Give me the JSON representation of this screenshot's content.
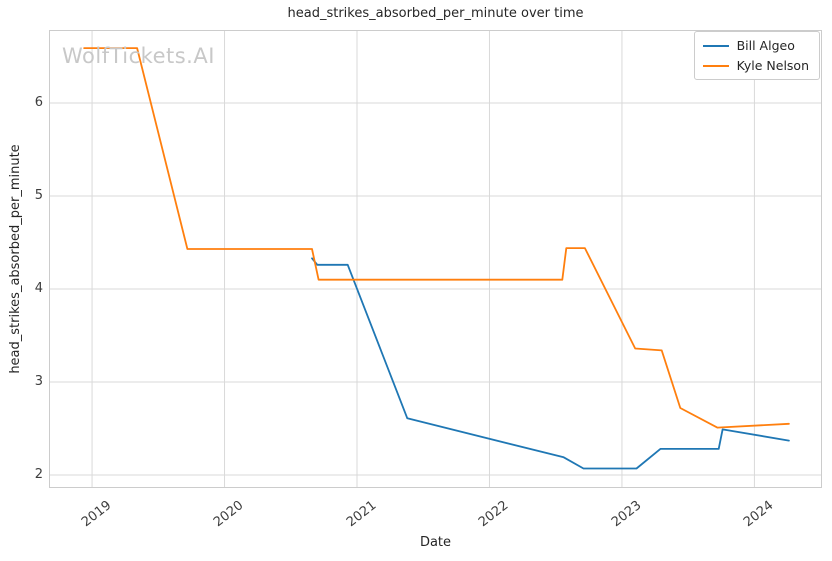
{
  "chart_data": {
    "type": "line",
    "title": "head_strikes_absorbed_per_minute over time",
    "xlabel": "Date",
    "ylabel": "head_strikes_absorbed_per_minute",
    "watermark": "WolfTickets.AI",
    "x_ticks": [
      2019,
      2020,
      2021,
      2022,
      2023,
      2024
    ],
    "x_tick_labels": [
      "2019",
      "2020",
      "2021",
      "2022",
      "2023",
      "2024"
    ],
    "y_ticks": [
      2,
      3,
      4,
      5,
      6
    ],
    "y_tick_labels": [
      "2",
      "3",
      "4",
      "5",
      "6"
    ],
    "xlim": [
      2018.675,
      2024.51
    ],
    "ylim": [
      1.86,
      6.785
    ],
    "grid": true,
    "legend_position": "upper right",
    "series": [
      {
        "name": "Bill Algeo",
        "color": "#1f77b4",
        "points": [
          [
            2020.66,
            4.33
          ],
          [
            2020.7,
            4.26
          ],
          [
            2020.93,
            4.26
          ],
          [
            2021.38,
            2.61
          ],
          [
            2022.56,
            2.19
          ],
          [
            2022.71,
            2.07
          ],
          [
            2023.11,
            2.07
          ],
          [
            2023.29,
            2.28
          ],
          [
            2023.73,
            2.28
          ],
          [
            2023.76,
            2.49
          ],
          [
            2024.26,
            2.37
          ]
        ]
      },
      {
        "name": "Kyle Nelson",
        "color": "#ff7f0e",
        "points": [
          [
            2018.94,
            6.59
          ],
          [
            2019.34,
            6.59
          ],
          [
            2019.72,
            4.43
          ],
          [
            2020.66,
            4.43
          ],
          [
            2020.71,
            4.1
          ],
          [
            2022.55,
            4.1
          ],
          [
            2022.58,
            4.44
          ],
          [
            2022.72,
            4.44
          ],
          [
            2023.1,
            3.36
          ],
          [
            2023.3,
            3.34
          ],
          [
            2023.44,
            2.72
          ],
          [
            2023.72,
            2.51
          ],
          [
            2024.26,
            2.55
          ]
        ]
      }
    ],
    "styles": {
      "grid_color": "#d9d9d9",
      "spine_color": "#cccccc",
      "tick_color": "#3d3d3d",
      "text_color": "#262626",
      "watermark_color": "#c8c8c8",
      "line_width": 1.8
    }
  }
}
